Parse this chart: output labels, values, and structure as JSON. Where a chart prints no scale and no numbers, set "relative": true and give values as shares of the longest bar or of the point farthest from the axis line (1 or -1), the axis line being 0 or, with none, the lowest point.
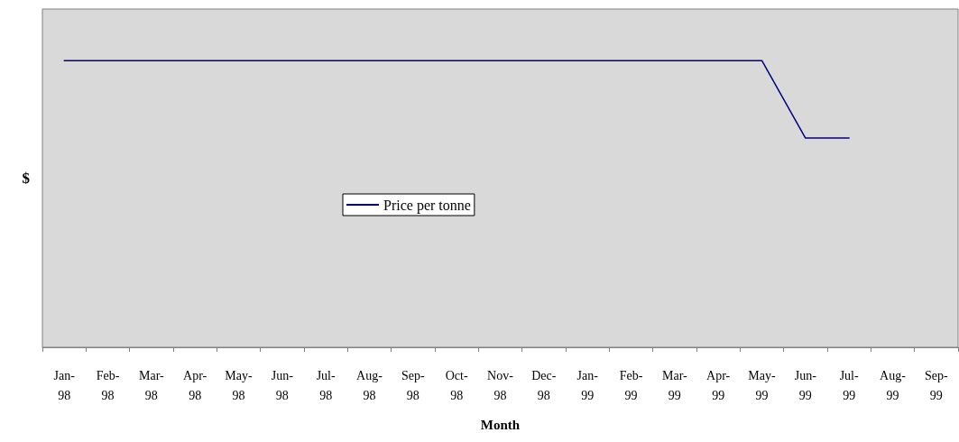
{
  "chart_data": {
    "type": "line",
    "xlabel": "Month",
    "ylabel": "$",
    "relative": true,
    "legend": "center",
    "grid": false,
    "marker": "none",
    "line_style": "solid",
    "categories": [
      "Jan-98",
      "Feb-98",
      "Mar-98",
      "Apr-98",
      "May-98",
      "Jun-98",
      "Jul-98",
      "Aug-98",
      "Sep-98",
      "Oct-98",
      "Nov-98",
      "Dec-98",
      "Jan-99",
      "Feb-99",
      "Mar-99",
      "Apr-99",
      "May-99",
      "Jun-99",
      "Jul-99",
      "Aug-99",
      "Sep-99"
    ],
    "series": [
      {
        "name": "Price per tonne",
        "color": "#000080",
        "values": [
          1,
          1,
          1,
          1,
          1,
          1,
          1,
          1,
          1,
          1,
          1,
          1,
          1,
          1,
          1,
          1,
          1,
          0.73,
          0.73,
          null,
          null
        ]
      }
    ]
  }
}
